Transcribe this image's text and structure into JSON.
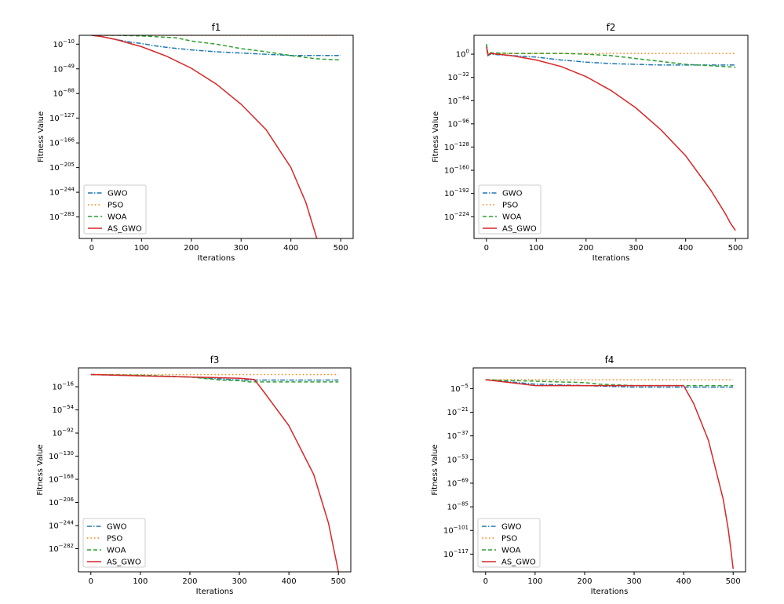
{
  "figure": {
    "background": "#ffffff"
  },
  "chart_data": [
    {
      "type": "line",
      "title": "f1",
      "xlabel": "Iterations",
      "ylabel": "Fitness Value",
      "yscale": "log10",
      "xlim": [
        -25,
        525
      ],
      "ylim_exp": [
        -317,
        4
      ],
      "xticks": [
        0,
        100,
        200,
        300,
        400,
        500
      ],
      "yticks_exp": [
        -10,
        -49,
        -88,
        -127,
        -166,
        -205,
        -244,
        -283
      ],
      "legend_loc": "lower-left",
      "series": [
        {
          "name": "GWO",
          "color": "#1f77b4",
          "dash": "6,2,1.5,2",
          "x": [
            0,
            20,
            50,
            80,
            100,
            130,
            160,
            200,
            250,
            300,
            350,
            380,
            400,
            450,
            500
          ],
          "y_exp": [
            4,
            2,
            -3,
            -7,
            -9,
            -13,
            -16,
            -19,
            -22,
            -24,
            -26,
            -27,
            -28,
            -28,
            -28
          ]
        },
        {
          "name": "PSO",
          "color": "#ff7f0e",
          "dash": "1.5,3",
          "x": [
            0,
            500
          ],
          "y_exp": [
            4,
            4
          ]
        },
        {
          "name": "WOA",
          "color": "#2ca02c",
          "dash": "5,3",
          "x": [
            0,
            50,
            100,
            170,
            200,
            250,
            300,
            350,
            400,
            450,
            500
          ],
          "y_exp": [
            4,
            4,
            3,
            0,
            -5,
            -10,
            -17,
            -22,
            -28,
            -33,
            -35
          ]
        },
        {
          "name": "AS_GWO",
          "color": "#d62728",
          "dash": "",
          "x": [
            0,
            20,
            50,
            100,
            150,
            200,
            250,
            300,
            350,
            400,
            430,
            452
          ],
          "y_exp": [
            4,
            2,
            -3,
            -14,
            -29,
            -48,
            -73,
            -105,
            -145,
            -205,
            -260,
            -317
          ]
        }
      ]
    },
    {
      "type": "line",
      "title": "f2",
      "xlabel": "Iterations",
      "ylabel": "Fitness Value",
      "yscale": "log10",
      "xlim": [
        -25,
        525
      ],
      "ylim_exp": [
        -254,
        26
      ],
      "xticks": [
        0,
        100,
        200,
        300,
        400,
        500
      ],
      "yticks_exp": [
        0,
        -32,
        -64,
        -96,
        -128,
        -160,
        -192,
        -224
      ],
      "legend_loc": "lower-left",
      "series": [
        {
          "name": "GWO",
          "color": "#1f77b4",
          "dash": "6,2,1.5,2",
          "x": [
            0,
            3,
            8,
            50,
            100,
            150,
            200,
            250,
            300,
            350,
            400,
            450,
            500
          ],
          "y_exp": [
            12,
            -2,
            0,
            -2,
            -4,
            -8,
            -11,
            -13,
            -14,
            -15,
            -15,
            -15,
            -15
          ]
        },
        {
          "name": "PSO",
          "color": "#ff7f0e",
          "dash": "1.5,3",
          "x": [
            0,
            5,
            500
          ],
          "y_exp": [
            4,
            1,
            1
          ]
        },
        {
          "name": "WOA",
          "color": "#2ca02c",
          "dash": "5,3",
          "x": [
            0,
            3,
            8,
            50,
            100,
            150,
            200,
            250,
            300,
            350,
            400,
            450,
            500
          ],
          "y_exp": [
            14,
            0,
            2,
            1,
            1,
            1,
            0,
            -2,
            -6,
            -10,
            -14,
            -16,
            -18
          ]
        },
        {
          "name": "AS_GWO",
          "color": "#d62728",
          "dash": "",
          "x": [
            0,
            3,
            8,
            50,
            100,
            150,
            200,
            250,
            300,
            350,
            400,
            450,
            480,
            490,
            500
          ],
          "y_exp": [
            10,
            -1,
            1,
            -2,
            -8,
            -17,
            -31,
            -50,
            -74,
            -104,
            -140,
            -187,
            -220,
            -233,
            -243
          ]
        }
      ]
    },
    {
      "type": "line",
      "title": "f3",
      "xlabel": "Iterations",
      "ylabel": "Fitness Value",
      "yscale": "log10",
      "xlim": [
        -25,
        525
      ],
      "ylim_exp": [
        -320,
        15
      ],
      "xticks": [
        0,
        100,
        200,
        300,
        400,
        500
      ],
      "yticks_exp": [
        -16,
        -54,
        -92,
        -130,
        -168,
        -206,
        -244,
        -282
      ],
      "legend_loc": "lower-left",
      "series": [
        {
          "name": "GWO",
          "color": "#1f77b4",
          "dash": "6,2,1.5,2",
          "x": [
            0,
            100,
            200,
            260,
            300,
            500
          ],
          "y_exp": [
            4,
            2,
            0,
            -3,
            -5,
            -5
          ]
        },
        {
          "name": "PSO",
          "color": "#ff7f0e",
          "dash": "1.5,3",
          "x": [
            0,
            500
          ],
          "y_exp": [
            4,
            4
          ]
        },
        {
          "name": "WOA",
          "color": "#2ca02c",
          "dash": "5,3",
          "x": [
            0,
            100,
            200,
            250,
            260,
            300,
            320,
            500
          ],
          "y_exp": [
            4,
            3,
            0,
            -4,
            -5,
            -6,
            -8,
            -8
          ]
        },
        {
          "name": "AS_GWO",
          "color": "#d62728",
          "dash": "",
          "x": [
            0,
            50,
            100,
            150,
            200,
            250,
            300,
            330,
            350,
            400,
            450,
            480,
            490,
            495,
            500
          ],
          "y_exp": [
            4,
            3,
            2,
            1,
            0,
            -1,
            -2,
            -4,
            -25,
            -80,
            -160,
            -240,
            -280,
            -300,
            -320
          ]
        }
      ]
    },
    {
      "type": "line",
      "title": "f4",
      "xlabel": "Iterations",
      "ylabel": "Fitness Value",
      "yscale": "log10",
      "xlim": [
        -25,
        525
      ],
      "ylim_exp": [
        -129,
        9
      ],
      "xticks": [
        0,
        100,
        200,
        300,
        400,
        500
      ],
      "yticks_exp": [
        -5,
        -21,
        -37,
        -53,
        -69,
        -85,
        -101,
        -117
      ],
      "legend_loc": "lower-left",
      "series": [
        {
          "name": "GWO",
          "color": "#1f77b4",
          "dash": "6,2,1.5,2",
          "x": [
            0,
            100,
            200,
            300,
            400,
            500
          ],
          "y_exp": [
            1,
            -2,
            -3,
            -4,
            -4,
            -4
          ]
        },
        {
          "name": "PSO",
          "color": "#ff7f0e",
          "dash": "1.5,3",
          "x": [
            0,
            500
          ],
          "y_exp": [
            1,
            1
          ]
        },
        {
          "name": "WOA",
          "color": "#2ca02c",
          "dash": "5,3",
          "x": [
            0,
            100,
            200,
            230,
            300,
            400,
            500
          ],
          "y_exp": [
            1,
            0,
            -1,
            -2,
            -3,
            -3,
            -3
          ]
        },
        {
          "name": "AS_GWO",
          "color": "#d62728",
          "dash": "",
          "x": [
            0,
            50,
            100,
            200,
            300,
            400,
            420,
            450,
            480,
            490,
            495,
            500
          ],
          "y_exp": [
            1,
            -1,
            -3,
            -3,
            -3,
            -3,
            -15,
            -40,
            -80,
            -100,
            -113,
            -127
          ]
        }
      ]
    }
  ]
}
